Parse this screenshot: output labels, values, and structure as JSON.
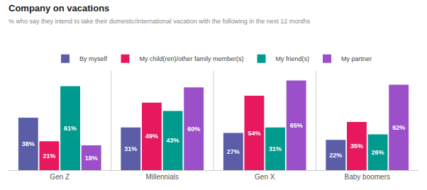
{
  "chart_data": {
    "type": "bar",
    "title": "Company on vacations",
    "subtitle": "% who say they intend to take their domestic/international vacation with the following in the next 12 months",
    "categories": [
      "Gen Z",
      "Millennials",
      "Gen X",
      "Baby boomers"
    ],
    "series": [
      {
        "name": "By myself",
        "color": "#5b5ea6",
        "values": [
          38,
          31,
          27,
          22
        ],
        "value_labels": [
          "38%",
          "31%",
          "27%",
          "22%"
        ]
      },
      {
        "name": "My child(ren)/other family member(s)",
        "color": "#e8185e",
        "values": [
          21,
          49,
          54,
          35
        ],
        "value_labels": [
          "21%",
          "49%",
          "54%",
          "35%"
        ]
      },
      {
        "name": "My friend(s)",
        "color": "#009a8e",
        "values": [
          61,
          43,
          31,
          26
        ],
        "value_labels": [
          "61%",
          "43%",
          "31%",
          "26%"
        ]
      },
      {
        "name": "My partner",
        "color": "#9b4fc8",
        "values": [
          18,
          60,
          65,
          62
        ],
        "value_labels": [
          "18%",
          "60%",
          "65%",
          "62%"
        ]
      }
    ],
    "ylim": [
      0,
      72
    ],
    "grid": false,
    "legend": "top",
    "data_labels": true,
    "tick_labels": "x"
  }
}
